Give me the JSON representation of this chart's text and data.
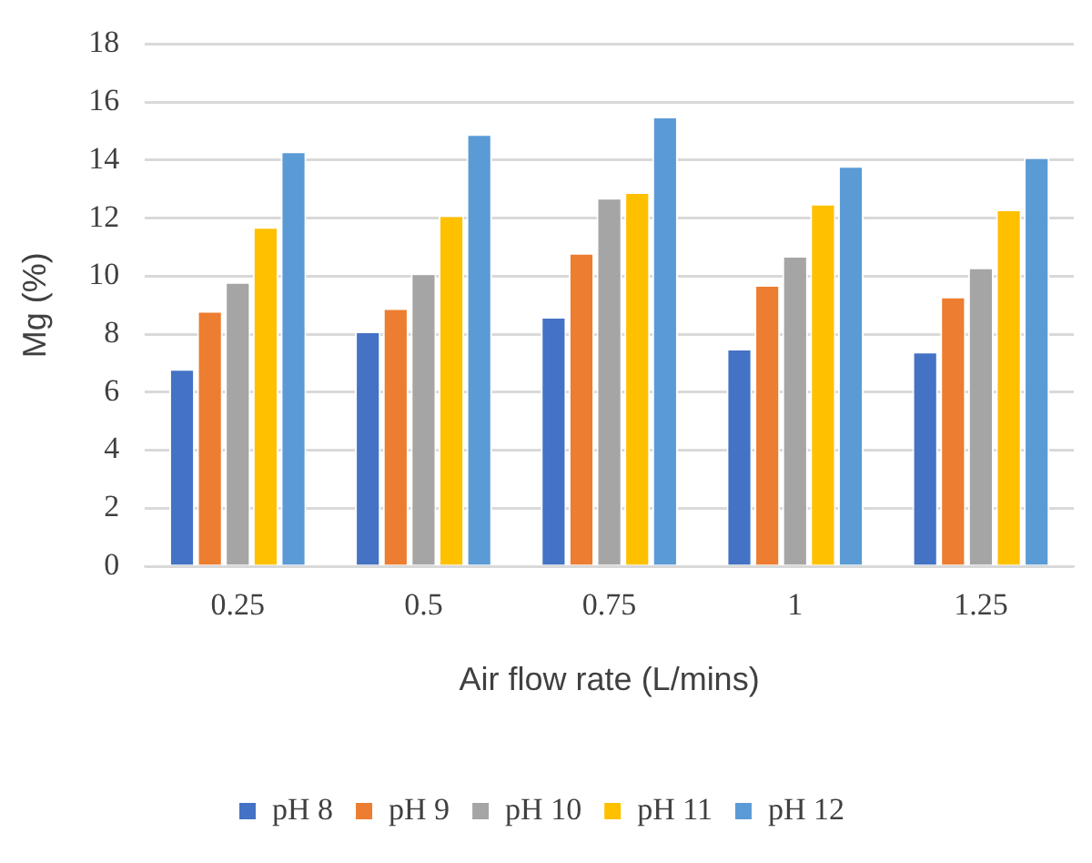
{
  "chart_data": {
    "type": "bar",
    "xlabel": "Air flow rate (L/mins)",
    "ylabel": "Mg (%)",
    "categories": [
      "0.25",
      "0.5",
      "0.75",
      "1",
      "1.25"
    ],
    "series": [
      {
        "name": "pH 8",
        "color": "#4472c4",
        "values": [
          6.8,
          8.1,
          8.6,
          7.5,
          7.4
        ]
      },
      {
        "name": "pH 9",
        "color": "#ed7d31",
        "values": [
          8.8,
          8.9,
          10.8,
          9.7,
          9.3
        ]
      },
      {
        "name": "pH 10",
        "color": "#a5a5a5",
        "values": [
          9.8,
          10.1,
          12.7,
          10.7,
          10.3
        ]
      },
      {
        "name": "pH 11",
        "color": "#ffc000",
        "values": [
          11.7,
          12.1,
          12.9,
          12.5,
          12.3
        ]
      },
      {
        "name": "pH 12",
        "color": "#5b9bd5",
        "values": [
          14.3,
          14.9,
          15.5,
          13.8,
          14.1
        ]
      }
    ],
    "ylim": [
      0,
      18
    ],
    "yticks": [
      0,
      2,
      4,
      6,
      8,
      10,
      12,
      14,
      16,
      18
    ],
    "grid": "y",
    "legend": "bottom"
  }
}
